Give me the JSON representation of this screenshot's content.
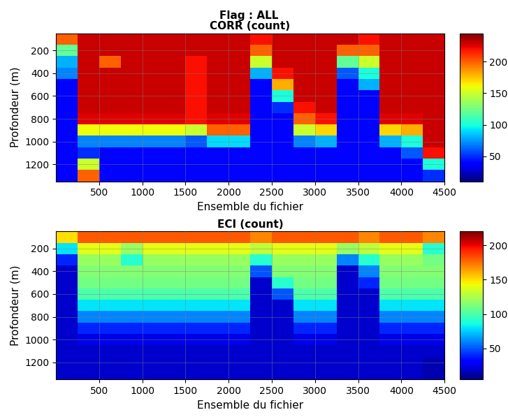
{
  "title": "Flag : ALL",
  "chart_data": [
    {
      "type": "heatmap",
      "title": "CORR (count)",
      "x_label": "Ensemble du fichier",
      "y_label": "Profondeur (m)",
      "x_edges": [
        0,
        250,
        500,
        750,
        1000,
        1250,
        1500,
        1750,
        2000,
        2250,
        2500,
        2750,
        3000,
        3250,
        3500,
        3750,
        4000,
        4250,
        4500
      ],
      "y_edges": [
        50,
        150,
        250,
        350,
        450,
        550,
        650,
        750,
        850,
        950,
        1050,
        1150,
        1250,
        1350
      ],
      "cells": [
        [
          200,
          230,
          230,
          230,
          230,
          230,
          230,
          230,
          230,
          220,
          230,
          230,
          230,
          230,
          220,
          230,
          230,
          230
        ],
        [
          120,
          230,
          230,
          230,
          230,
          230,
          230,
          230,
          230,
          200,
          230,
          230,
          230,
          200,
          200,
          230,
          230,
          230
        ],
        [
          80,
          230,
          200,
          230,
          230,
          230,
          220,
          230,
          230,
          150,
          230,
          230,
          230,
          120,
          150,
          230,
          230,
          230
        ],
        [
          70,
          230,
          230,
          230,
          230,
          230,
          220,
          230,
          230,
          80,
          220,
          230,
          230,
          60,
          100,
          230,
          230,
          230
        ],
        [
          40,
          230,
          230,
          230,
          230,
          230,
          220,
          230,
          230,
          40,
          180,
          230,
          230,
          40,
          80,
          230,
          230,
          230
        ],
        [
          40,
          230,
          230,
          230,
          230,
          230,
          220,
          230,
          230,
          40,
          100,
          230,
          230,
          40,
          40,
          230,
          230,
          230
        ],
        [
          40,
          230,
          230,
          230,
          230,
          230,
          220,
          230,
          230,
          40,
          50,
          220,
          230,
          40,
          40,
          230,
          230,
          230
        ],
        [
          40,
          225,
          225,
          225,
          225,
          225,
          220,
          225,
          225,
          40,
          40,
          200,
          220,
          40,
          40,
          225,
          225,
          230
        ],
        [
          40,
          160,
          160,
          160,
          160,
          160,
          150,
          200,
          200,
          40,
          40,
          150,
          170,
          40,
          40,
          170,
          180,
          230
        ],
        [
          40,
          70,
          70,
          70,
          70,
          70,
          60,
          90,
          90,
          40,
          40,
          70,
          80,
          40,
          40,
          80,
          100,
          230
        ],
        [
          40,
          50,
          40,
          40,
          40,
          40,
          40,
          40,
          40,
          40,
          40,
          40,
          40,
          40,
          40,
          40,
          60,
          220
        ],
        [
          40,
          150,
          40,
          40,
          40,
          40,
          40,
          40,
          40,
          40,
          40,
          40,
          40,
          40,
          40,
          40,
          40,
          100
        ],
        [
          40,
          200,
          40,
          40,
          40,
          40,
          40,
          40,
          40,
          40,
          40,
          40,
          40,
          40,
          40,
          40,
          40,
          50
        ]
      ],
      "xlim": [
        0,
        4500
      ],
      "xticks": [
        500,
        1000,
        1500,
        2000,
        2500,
        3000,
        3500,
        4000,
        4500
      ],
      "ylim": [
        1350,
        50
      ],
      "yticks": [
        200,
        400,
        600,
        800,
        1000,
        1200
      ],
      "colorbar_range": [
        10,
        245
      ],
      "colorbar_ticks": [
        50,
        100,
        150,
        200
      ],
      "grid": true
    },
    {
      "type": "heatmap",
      "title": "ECI (count)",
      "x_label": "Ensemble du fichier",
      "y_label": "Profondeur (m)",
      "x_edges": [
        0,
        250,
        500,
        750,
        1000,
        1250,
        1500,
        1750,
        2000,
        2250,
        2500,
        2750,
        3000,
        3250,
        3500,
        3750,
        4000,
        4250,
        4500
      ],
      "y_edges": [
        50,
        150,
        250,
        350,
        450,
        550,
        650,
        750,
        850,
        950,
        1050,
        1150,
        1250,
        1350
      ],
      "cells": [
        [
          150,
          180,
          180,
          180,
          180,
          180,
          180,
          180,
          180,
          170,
          180,
          180,
          180,
          180,
          170,
          180,
          180,
          170
        ],
        [
          80,
          140,
          140,
          120,
          140,
          140,
          140,
          140,
          140,
          130,
          140,
          140,
          140,
          120,
          130,
          140,
          140,
          90
        ],
        [
          40,
          120,
          120,
          90,
          120,
          120,
          120,
          120,
          120,
          90,
          120,
          120,
          120,
          60,
          90,
          120,
          120,
          110
        ],
        [
          20,
          115,
          115,
          115,
          115,
          115,
          115,
          115,
          115,
          50,
          115,
          115,
          115,
          20,
          60,
          115,
          115,
          115
        ],
        [
          20,
          110,
          110,
          110,
          110,
          110,
          110,
          110,
          110,
          20,
          90,
          110,
          110,
          20,
          40,
          110,
          110,
          110
        ],
        [
          20,
          100,
          100,
          100,
          100,
          100,
          100,
          100,
          100,
          20,
          50,
          100,
          100,
          20,
          20,
          100,
          100,
          100
        ],
        [
          20,
          80,
          80,
          80,
          80,
          80,
          80,
          80,
          80,
          20,
          20,
          80,
          80,
          20,
          20,
          80,
          80,
          80
        ],
        [
          20,
          60,
          60,
          60,
          60,
          60,
          60,
          60,
          60,
          20,
          20,
          60,
          60,
          20,
          20,
          60,
          60,
          60
        ],
        [
          20,
          40,
          40,
          40,
          40,
          40,
          40,
          40,
          40,
          20,
          20,
          40,
          40,
          20,
          20,
          40,
          40,
          40
        ],
        [
          20,
          25,
          25,
          25,
          25,
          25,
          25,
          25,
          25,
          20,
          20,
          25,
          25,
          20,
          20,
          25,
          25,
          25
        ],
        [
          20,
          20,
          20,
          20,
          20,
          20,
          20,
          20,
          20,
          20,
          20,
          20,
          20,
          20,
          20,
          20,
          20,
          20
        ],
        [
          20,
          20,
          20,
          20,
          20,
          20,
          20,
          20,
          20,
          20,
          20,
          20,
          20,
          20,
          20,
          20,
          20,
          15
        ],
        [
          20,
          20,
          20,
          20,
          20,
          20,
          20,
          20,
          20,
          20,
          20,
          20,
          20,
          20,
          20,
          20,
          20,
          15
        ]
      ],
      "xlim": [
        0,
        4500
      ],
      "xticks": [
        500,
        1000,
        1500,
        2000,
        2500,
        3000,
        3500,
        4000,
        4500
      ],
      "ylim": [
        1350,
        50
      ],
      "yticks": [
        200,
        400,
        600,
        800,
        1000,
        1200
      ],
      "colorbar_range": [
        5,
        220
      ],
      "colorbar_ticks": [
        50,
        100,
        150,
        200
      ],
      "grid": true
    }
  ]
}
